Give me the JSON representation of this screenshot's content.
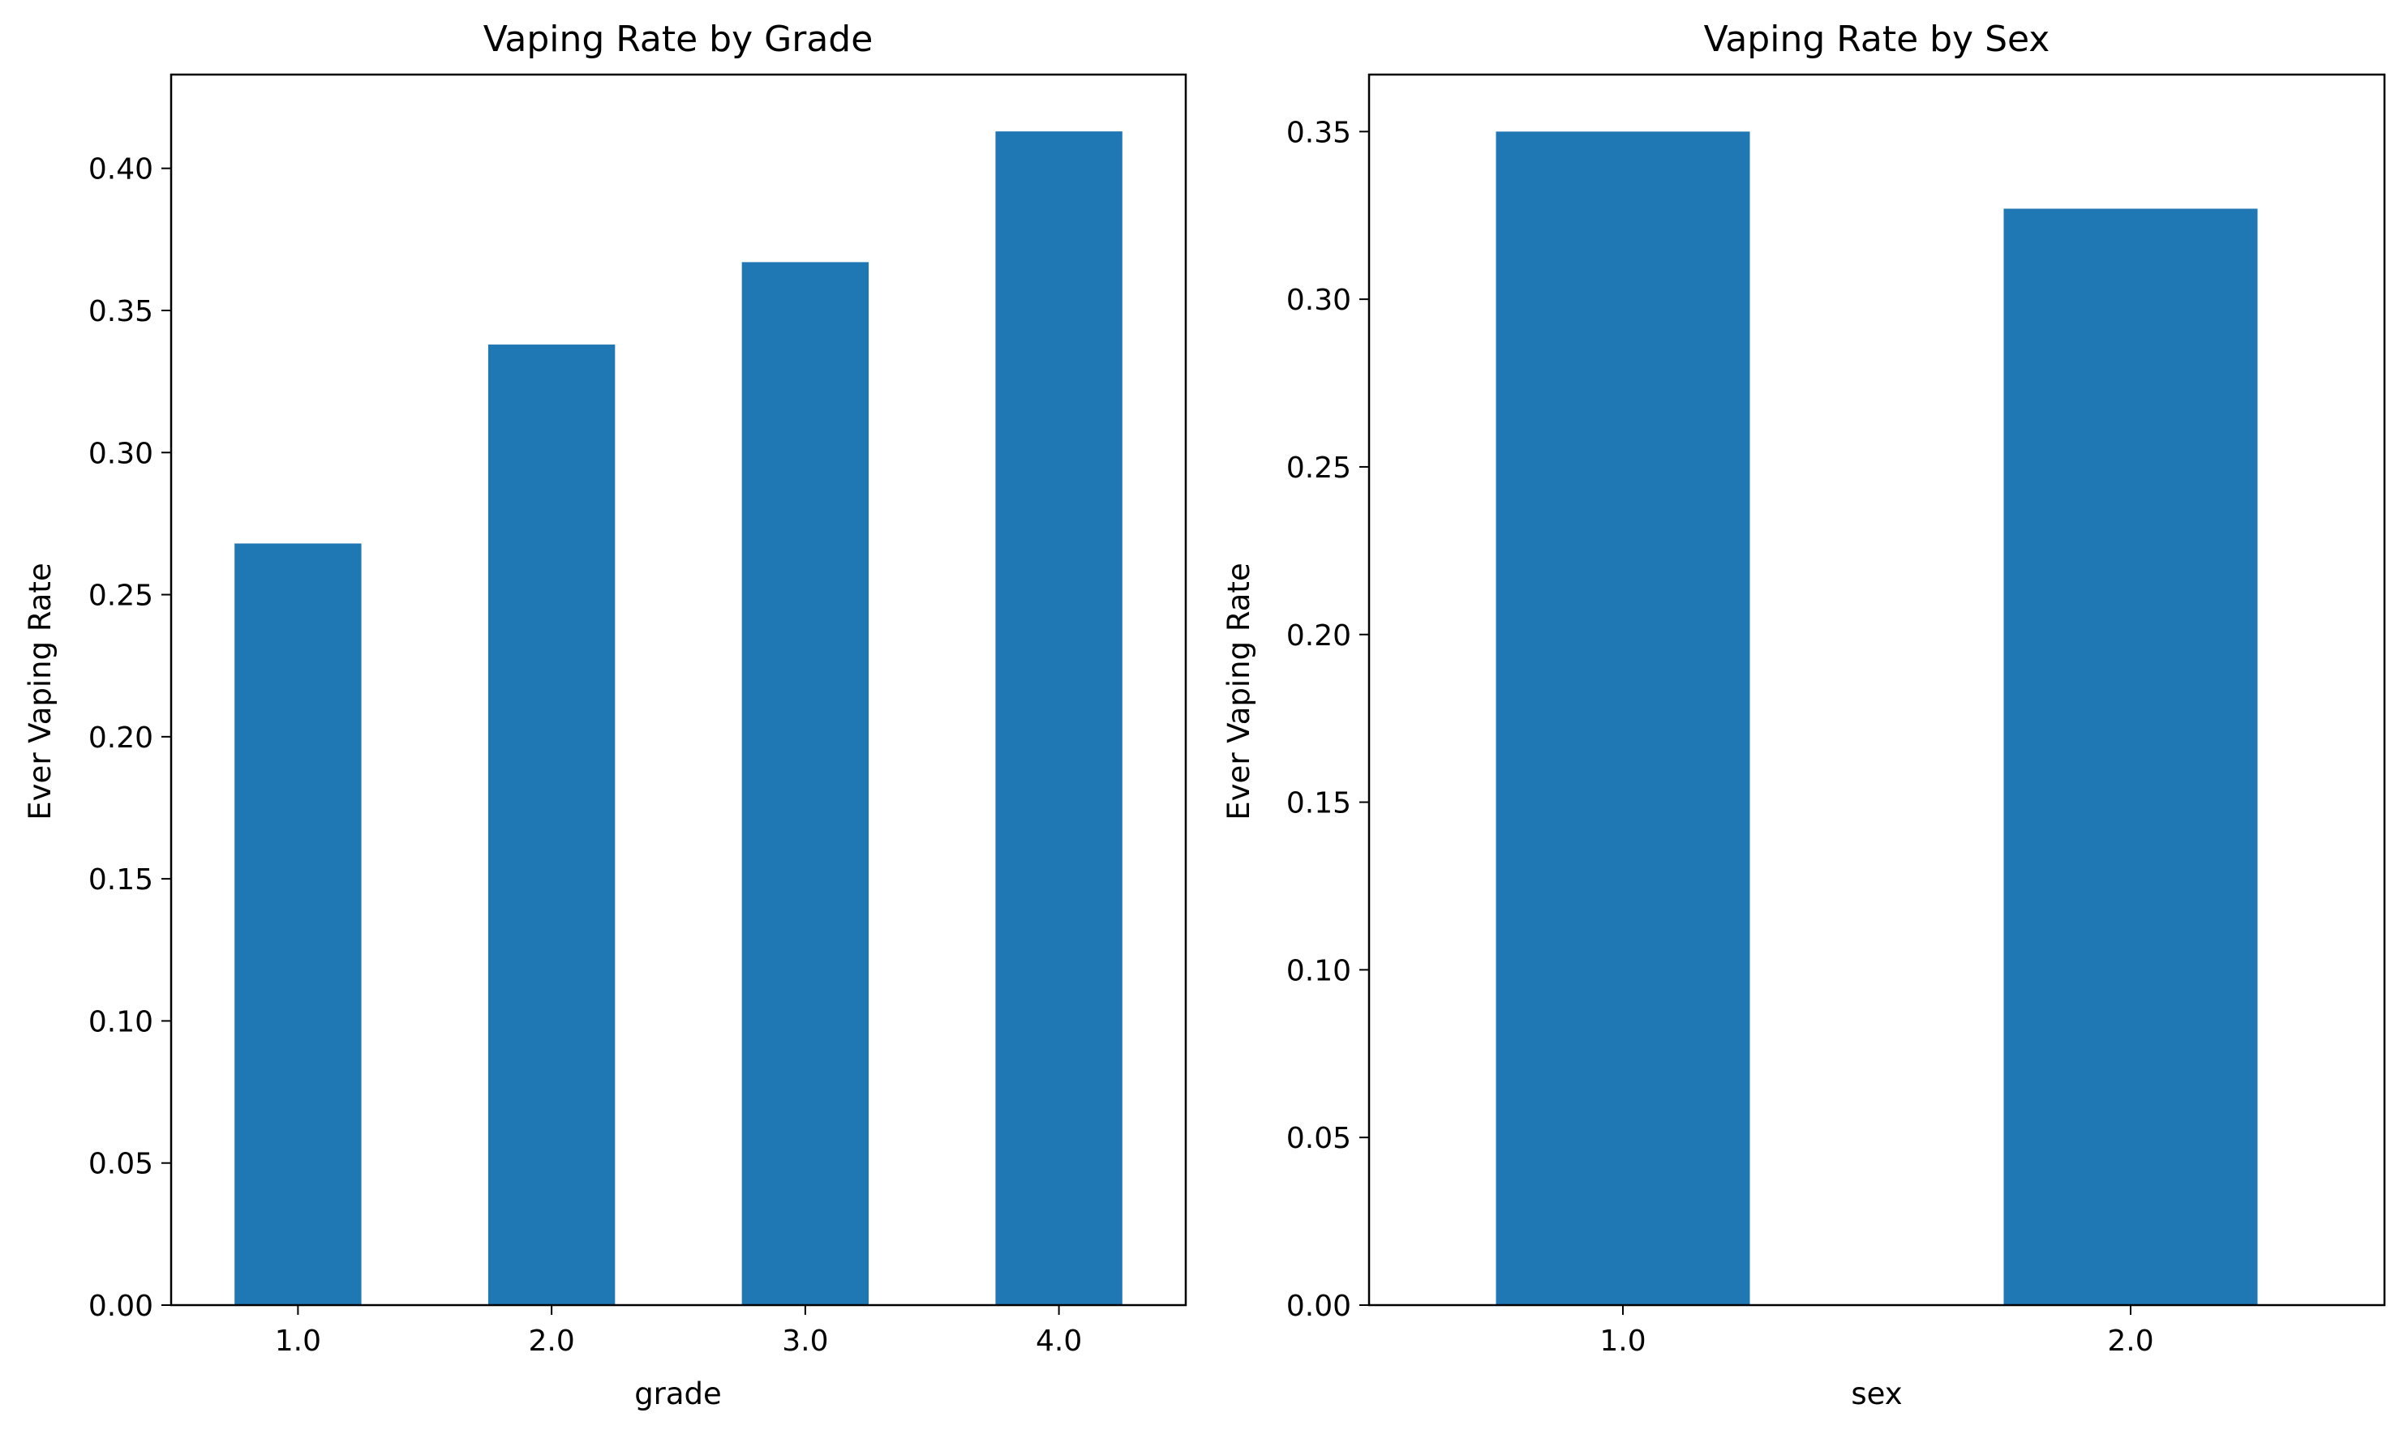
{
  "chart_data": [
    {
      "type": "bar",
      "title": "Vaping Rate by Grade",
      "xlabel": "grade",
      "ylabel": "Ever Vaping Rate",
      "categories": [
        "1.0",
        "2.0",
        "3.0",
        "4.0"
      ],
      "values": [
        0.268,
        0.338,
        0.367,
        0.413
      ],
      "ylim": [
        0,
        0.433
      ],
      "yticks": [
        0.0,
        0.05,
        0.1,
        0.15,
        0.2,
        0.25,
        0.3,
        0.35,
        0.4
      ],
      "ytick_labels": [
        "0.00",
        "0.05",
        "0.10",
        "0.15",
        "0.20",
        "0.25",
        "0.30",
        "0.35",
        "0.40"
      ],
      "bar_color": "#1f77b4",
      "grid": false,
      "legend": false
    },
    {
      "type": "bar",
      "title": "Vaping Rate by Sex",
      "xlabel": "sex",
      "ylabel": "Ever Vaping Rate",
      "categories": [
        "1.0",
        "2.0"
      ],
      "values": [
        0.35,
        0.327
      ],
      "ylim": [
        0,
        0.367
      ],
      "yticks": [
        0.0,
        0.05,
        0.1,
        0.15,
        0.2,
        0.25,
        0.3,
        0.35
      ],
      "ytick_labels": [
        "0.00",
        "0.05",
        "0.10",
        "0.15",
        "0.20",
        "0.25",
        "0.30",
        "0.35"
      ],
      "bar_color": "#1f77b4",
      "grid": false,
      "legend": false
    }
  ]
}
